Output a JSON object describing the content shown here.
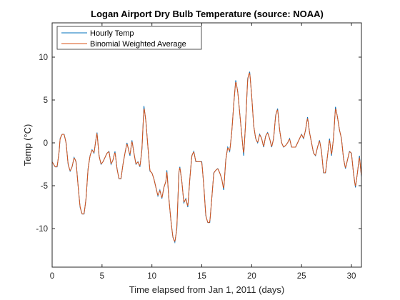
{
  "chart_data": {
    "type": "line",
    "title": "Logan Airport Dry Bulb Temperature (source: NOAA)",
    "xlabel": "Time elapsed from Jan 1, 2011 (days)",
    "ylabel": "Temp (°C)",
    "xlim": [
      0,
      31
    ],
    "ylim": [
      -14.5,
      14
    ],
    "xticks": [
      0,
      5,
      10,
      15,
      20,
      25,
      30
    ],
    "yticks": [
      -10,
      -5,
      0,
      5,
      10
    ],
    "grid": false,
    "legend_position": "top-left",
    "series": [
      {
        "name": "Hourly Temp",
        "color": "#0072BD",
        "points": [
          [
            0,
            -2.2
          ],
          [
            0.3,
            -2.8
          ],
          [
            0.5,
            -2.8
          ],
          [
            0.7,
            -1.0
          ],
          [
            0.8,
            0.5
          ],
          [
            1.0,
            1.0
          ],
          [
            1.2,
            1.0
          ],
          [
            1.4,
            0.0
          ],
          [
            1.6,
            -2.5
          ],
          [
            1.8,
            -3.3
          ],
          [
            2.0,
            -2.8
          ],
          [
            2.2,
            -1.7
          ],
          [
            2.4,
            -2.2
          ],
          [
            2.6,
            -5.0
          ],
          [
            2.8,
            -7.5
          ],
          [
            3.0,
            -8.3
          ],
          [
            3.2,
            -8.3
          ],
          [
            3.4,
            -6.5
          ],
          [
            3.6,
            -3.0
          ],
          [
            3.8,
            -1.5
          ],
          [
            4.0,
            -0.8
          ],
          [
            4.2,
            -1.2
          ],
          [
            4.4,
            0.5
          ],
          [
            4.5,
            1.2
          ],
          [
            4.7,
            -1.5
          ],
          [
            4.9,
            -2.5
          ],
          [
            5.1,
            -2.2
          ],
          [
            5.3,
            -1.7
          ],
          [
            5.5,
            -1.2
          ],
          [
            5.7,
            -1.0
          ],
          [
            5.9,
            -2.5
          ],
          [
            6.1,
            -2.0
          ],
          [
            6.3,
            -1.0
          ],
          [
            6.5,
            -3.0
          ],
          [
            6.7,
            -4.2
          ],
          [
            6.9,
            -4.2
          ],
          [
            7.1,
            -2.5
          ],
          [
            7.3,
            -1.2
          ],
          [
            7.5,
            0.0
          ],
          [
            7.8,
            -1.5
          ],
          [
            8.0,
            0.3
          ],
          [
            8.2,
            -1.2
          ],
          [
            8.4,
            -2.5
          ],
          [
            8.6,
            -2.2
          ],
          [
            8.8,
            -2.8
          ],
          [
            9.0,
            -0.8
          ],
          [
            9.2,
            4.3
          ],
          [
            9.4,
            2.5
          ],
          [
            9.6,
            -0.5
          ],
          [
            9.8,
            -3.3
          ],
          [
            10.0,
            -3.5
          ],
          [
            10.2,
            -4.2
          ],
          [
            10.4,
            -5.2
          ],
          [
            10.6,
            -6.2
          ],
          [
            10.8,
            -5.5
          ],
          [
            11.0,
            -6.5
          ],
          [
            11.2,
            -5.2
          ],
          [
            11.4,
            -4.5
          ],
          [
            11.5,
            -3.2
          ],
          [
            11.7,
            -6.5
          ],
          [
            11.9,
            -9.0
          ],
          [
            12.1,
            -11.0
          ],
          [
            12.3,
            -11.6
          ],
          [
            12.5,
            -10.0
          ],
          [
            12.7,
            -3.5
          ],
          [
            12.8,
            -2.8
          ],
          [
            13.0,
            -4.5
          ],
          [
            13.2,
            -7.0
          ],
          [
            13.4,
            -6.5
          ],
          [
            13.6,
            -7.5
          ],
          [
            13.8,
            -4.2
          ],
          [
            14.0,
            -1.5
          ],
          [
            14.2,
            -1.0
          ],
          [
            14.4,
            -2.2
          ],
          [
            14.6,
            -2.2
          ],
          [
            14.8,
            -2.2
          ],
          [
            15.0,
            -2.2
          ],
          [
            15.2,
            -5.0
          ],
          [
            15.4,
            -8.5
          ],
          [
            15.6,
            -9.3
          ],
          [
            15.8,
            -9.3
          ],
          [
            16.0,
            -6.5
          ],
          [
            16.2,
            -3.5
          ],
          [
            16.4,
            -3.2
          ],
          [
            16.6,
            -3.0
          ],
          [
            16.8,
            -3.5
          ],
          [
            17.0,
            -4.2
          ],
          [
            17.2,
            -5.5
          ],
          [
            17.4,
            -2.0
          ],
          [
            17.6,
            -0.5
          ],
          [
            17.8,
            -1.0
          ],
          [
            18.0,
            1.2
          ],
          [
            18.2,
            4.5
          ],
          [
            18.4,
            7.3
          ],
          [
            18.6,
            6.0
          ],
          [
            18.8,
            3.5
          ],
          [
            19.0,
            1.0
          ],
          [
            19.2,
            -1.5
          ],
          [
            19.4,
            2.5
          ],
          [
            19.6,
            7.5
          ],
          [
            19.8,
            8.3
          ],
          [
            20.0,
            5.5
          ],
          [
            20.2,
            2.0
          ],
          [
            20.4,
            0.5
          ],
          [
            20.6,
            0.0
          ],
          [
            20.8,
            1.0
          ],
          [
            21.0,
            0.5
          ],
          [
            21.2,
            -0.5
          ],
          [
            21.4,
            0.8
          ],
          [
            21.6,
            1.2
          ],
          [
            21.8,
            0.5
          ],
          [
            22.0,
            -0.5
          ],
          [
            22.2,
            0.5
          ],
          [
            22.4,
            3.2
          ],
          [
            22.6,
            4.0
          ],
          [
            22.8,
            1.5
          ],
          [
            23.0,
            0.0
          ],
          [
            23.2,
            -0.5
          ],
          [
            23.4,
            -0.3
          ],
          [
            23.6,
            0.0
          ],
          [
            23.8,
            0.5
          ],
          [
            24.0,
            -0.5
          ],
          [
            24.2,
            -0.5
          ],
          [
            24.4,
            -0.5
          ],
          [
            24.6,
            0.0
          ],
          [
            24.8,
            0.5
          ],
          [
            25.0,
            1.0
          ],
          [
            25.2,
            0.5
          ],
          [
            25.4,
            1.5
          ],
          [
            25.6,
            3.0
          ],
          [
            25.8,
            1.2
          ],
          [
            26.0,
            0.0
          ],
          [
            26.2,
            -1.2
          ],
          [
            26.4,
            -1.5
          ],
          [
            26.6,
            -0.5
          ],
          [
            26.8,
            0.3
          ],
          [
            27.0,
            -1.0
          ],
          [
            27.2,
            -3.5
          ],
          [
            27.4,
            -3.5
          ],
          [
            27.6,
            -1.5
          ],
          [
            27.8,
            0.5
          ],
          [
            28.0,
            -1.5
          ],
          [
            28.2,
            0.5
          ],
          [
            28.4,
            4.2
          ],
          [
            28.6,
            3.0
          ],
          [
            28.8,
            1.5
          ],
          [
            29.0,
            0.5
          ],
          [
            29.2,
            -1.8
          ],
          [
            29.4,
            -3.0
          ],
          [
            29.6,
            -2.0
          ],
          [
            29.8,
            -1.0
          ],
          [
            30.0,
            -1.2
          ],
          [
            30.2,
            -3.5
          ],
          [
            30.4,
            -5.2
          ],
          [
            30.6,
            -3.5
          ],
          [
            30.8,
            -1.5
          ],
          [
            31.0,
            -4.0
          ]
        ]
      },
      {
        "name": "Binomial Weighted Average",
        "color": "#D95319",
        "points": []
      }
    ]
  }
}
